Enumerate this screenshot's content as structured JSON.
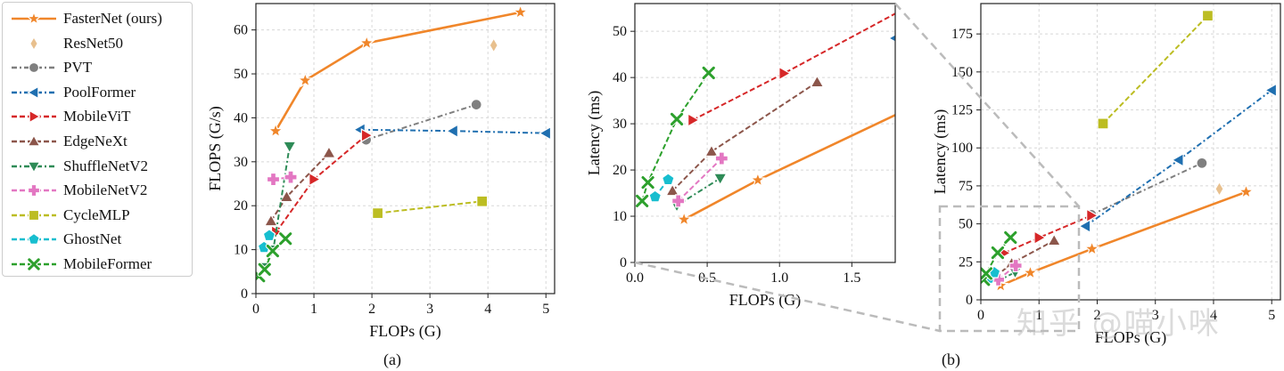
{
  "captions": {
    "a": "(a)",
    "b": "(b)"
  },
  "watermark": "知乎 @喵小咪",
  "legend": [
    {
      "name": "FasterNet (ours)",
      "color": "#f0862a",
      "dash": "",
      "marker": "star"
    },
    {
      "name": "ResNet50",
      "color": "#e8c08e",
      "dash": "",
      "marker": "diamond"
    },
    {
      "name": "PVT",
      "color": "#7f7f7f",
      "dash": "6,3,2,3",
      "marker": "circle"
    },
    {
      "name": "PoolFormer",
      "color": "#1f6fb0",
      "dash": "6,3,2,3",
      "marker": "triangle-left"
    },
    {
      "name": "MobileViT",
      "color": "#d62728",
      "dash": "6,3",
      "marker": "triangle-right"
    },
    {
      "name": "EdgeNeXt",
      "color": "#8c564b",
      "dash": "6,3",
      "marker": "triangle-up"
    },
    {
      "name": "ShuffleNetV2",
      "color": "#2e8b57",
      "dash": "6,3,2,3",
      "marker": "triangle-down"
    },
    {
      "name": "MobileNetV2",
      "color": "#e377c2",
      "dash": "6,3",
      "marker": "plus"
    },
    {
      "name": "CycleMLP",
      "color": "#bcbd22",
      "dash": "6,3",
      "marker": "square"
    },
    {
      "name": "GhostNet",
      "color": "#17becf",
      "dash": "6,3",
      "marker": "pentagon"
    },
    {
      "name": "MobileFormer",
      "color": "#2ca02c",
      "dash": "6,3",
      "marker": "x"
    }
  ],
  "chart_data": [
    {
      "type": "line",
      "xlabel": "FLOPs (G)",
      "ylabel": "FLOPS (G/s)",
      "xlim": [
        0,
        5.15
      ],
      "ylim": [
        0,
        66
      ],
      "xticks": [
        0,
        1,
        2,
        3,
        4,
        5
      ],
      "yticks": [
        0,
        10,
        20,
        30,
        40,
        50,
        60
      ],
      "grid": true,
      "series": [
        {
          "name": "FasterNet (ours)",
          "x": [
            0.34,
            0.85,
            1.91,
            4.56
          ],
          "y": [
            37,
            48.5,
            57,
            64
          ]
        },
        {
          "name": "ResNet50",
          "x": [
            4.1
          ],
          "y": [
            56.5
          ]
        },
        {
          "name": "PVT",
          "x": [
            1.9,
            3.8
          ],
          "y": [
            35,
            43
          ]
        },
        {
          "name": "PoolFormer",
          "x": [
            1.8,
            3.4,
            5.0
          ],
          "y": [
            37.3,
            37,
            36.5
          ]
        },
        {
          "name": "MobileViT",
          "x": [
            0.35,
            1.0,
            1.9
          ],
          "y": [
            14,
            26,
            36
          ]
        },
        {
          "name": "EdgeNeXt",
          "x": [
            0.26,
            0.53,
            1.26
          ],
          "y": [
            16.5,
            22,
            32
          ]
        },
        {
          "name": "ShuffleNetV2",
          "x": [
            0.15,
            0.3,
            0.58
          ],
          "y": [
            6,
            10,
            33.5
          ]
        },
        {
          "name": "MobileNetV2",
          "x": [
            0.3,
            0.6
          ],
          "y": [
            26,
            26.5
          ]
        },
        {
          "name": "CycleMLP",
          "x": [
            2.1,
            3.9
          ],
          "y": [
            18.3,
            21
          ]
        },
        {
          "name": "GhostNet",
          "x": [
            0.14,
            0.23
          ],
          "y": [
            10.5,
            13.2
          ]
        },
        {
          "name": "MobileFormer",
          "x": [
            0.05,
            0.15,
            0.29,
            0.51
          ],
          "y": [
            4,
            5.5,
            9.7,
            12.5
          ]
        }
      ]
    },
    {
      "type": "line",
      "xlabel": "FLOPs (G)",
      "ylabel": "Latency (ms)",
      "xlim": [
        0,
        1.8
      ],
      "ylim": [
        0,
        56
      ],
      "xticks": [
        0,
        0.5,
        1,
        1.5
      ],
      "yticks": [
        0,
        10,
        20,
        30,
        40,
        50
      ],
      "xticklabels": [
        "0.0",
        "0.5",
        "1.0",
        "1.5"
      ],
      "grid": true,
      "series": [
        {
          "name": "FasterNet (ours)",
          "x": [
            0.34,
            0.85,
            1.91
          ],
          "y": [
            9.3,
            17.8,
            33.5
          ]
        },
        {
          "name": "PVT",
          "x": [
            1.9
          ],
          "y": [
            56
          ]
        },
        {
          "name": "PoolFormer",
          "x": [
            1.8
          ],
          "y": [
            48.5
          ]
        },
        {
          "name": "MobileViT",
          "x": [
            0.4,
            1.03,
            1.9
          ],
          "y": [
            30.8,
            40.9,
            55.5
          ]
        },
        {
          "name": "EdgeNeXt",
          "x": [
            0.26,
            0.53,
            1.26
          ],
          "y": [
            15.5,
            24,
            39
          ]
        },
        {
          "name": "ShuffleNetV2",
          "x": [
            0.29,
            0.59
          ],
          "y": [
            12.3,
            18.2
          ]
        },
        {
          "name": "MobileNetV2",
          "x": [
            0.3,
            0.6
          ],
          "y": [
            13.3,
            22.5
          ]
        },
        {
          "name": "GhostNet",
          "x": [
            0.14,
            0.23
          ],
          "y": [
            14.2,
            17.9
          ]
        },
        {
          "name": "MobileFormer",
          "x": [
            0.05,
            0.09,
            0.29,
            0.51
          ],
          "y": [
            13.3,
            17.3,
            31,
            41
          ]
        }
      ]
    },
    {
      "type": "line",
      "xlabel": "FLOPs (G)",
      "ylabel": "Latency (ms)",
      "xlim": [
        0,
        5.15
      ],
      "ylim": [
        0,
        195
      ],
      "xticks": [
        0,
        1,
        2,
        3,
        4,
        5
      ],
      "yticks": [
        0,
        25,
        50,
        75,
        100,
        125,
        150,
        175
      ],
      "grid": true,
      "series": [
        {
          "name": "FasterNet (ours)",
          "x": [
            0.34,
            0.85,
            1.91,
            4.56
          ],
          "y": [
            9.3,
            17.8,
            33.5,
            71
          ]
        },
        {
          "name": "ResNet50",
          "x": [
            4.1
          ],
          "y": [
            73
          ]
        },
        {
          "name": "PVT",
          "x": [
            1.9,
            3.8
          ],
          "y": [
            56,
            90
          ]
        },
        {
          "name": "PoolFormer",
          "x": [
            1.8,
            3.4,
            5.0
          ],
          "y": [
            48.5,
            92,
            138
          ]
        },
        {
          "name": "MobileViT",
          "x": [
            0.4,
            1.0,
            1.9
          ],
          "y": [
            30.8,
            40.9,
            55.5
          ]
        },
        {
          "name": "EdgeNeXt",
          "x": [
            0.26,
            0.53,
            1.26
          ],
          "y": [
            15.5,
            24,
            39
          ]
        },
        {
          "name": "ShuffleNetV2",
          "x": [
            0.29,
            0.59
          ],
          "y": [
            12.3,
            18.2
          ]
        },
        {
          "name": "MobileNetV2",
          "x": [
            0.3,
            0.6
          ],
          "y": [
            13.3,
            22.5
          ]
        },
        {
          "name": "CycleMLP",
          "x": [
            2.1,
            3.9
          ],
          "y": [
            116,
            187
          ]
        },
        {
          "name": "GhostNet",
          "x": [
            0.14,
            0.23
          ],
          "y": [
            14.2,
            17.9
          ]
        },
        {
          "name": "MobileFormer",
          "x": [
            0.05,
            0.09,
            0.29,
            0.51
          ],
          "y": [
            13.3,
            17.3,
            31,
            41
          ]
        }
      ]
    }
  ]
}
